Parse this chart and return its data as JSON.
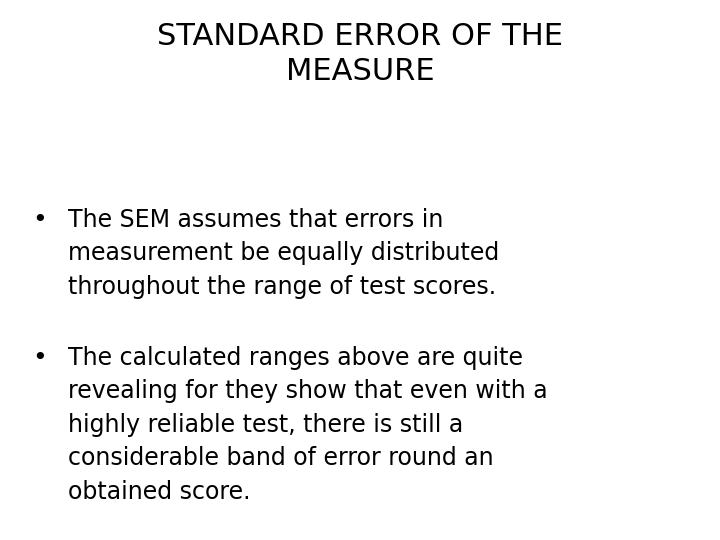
{
  "title_line1": "STANDARD ERROR OF THE",
  "title_line2": "MEASURE",
  "bullet1_lines": [
    "The SEM assumes that errors in",
    "measurement be equally distributed",
    "throughout the range of test scores."
  ],
  "bullet2_lines": [
    "The calculated ranges above are quite",
    "revealing for they show that even with a",
    "highly reliable test, there is still a",
    "considerable band of error round an",
    "obtained score."
  ],
  "bg_color": "#ffffff",
  "text_color": "#000000",
  "title_fontsize": 22,
  "body_fontsize": 17,
  "font_family": "DejaVu Sans"
}
